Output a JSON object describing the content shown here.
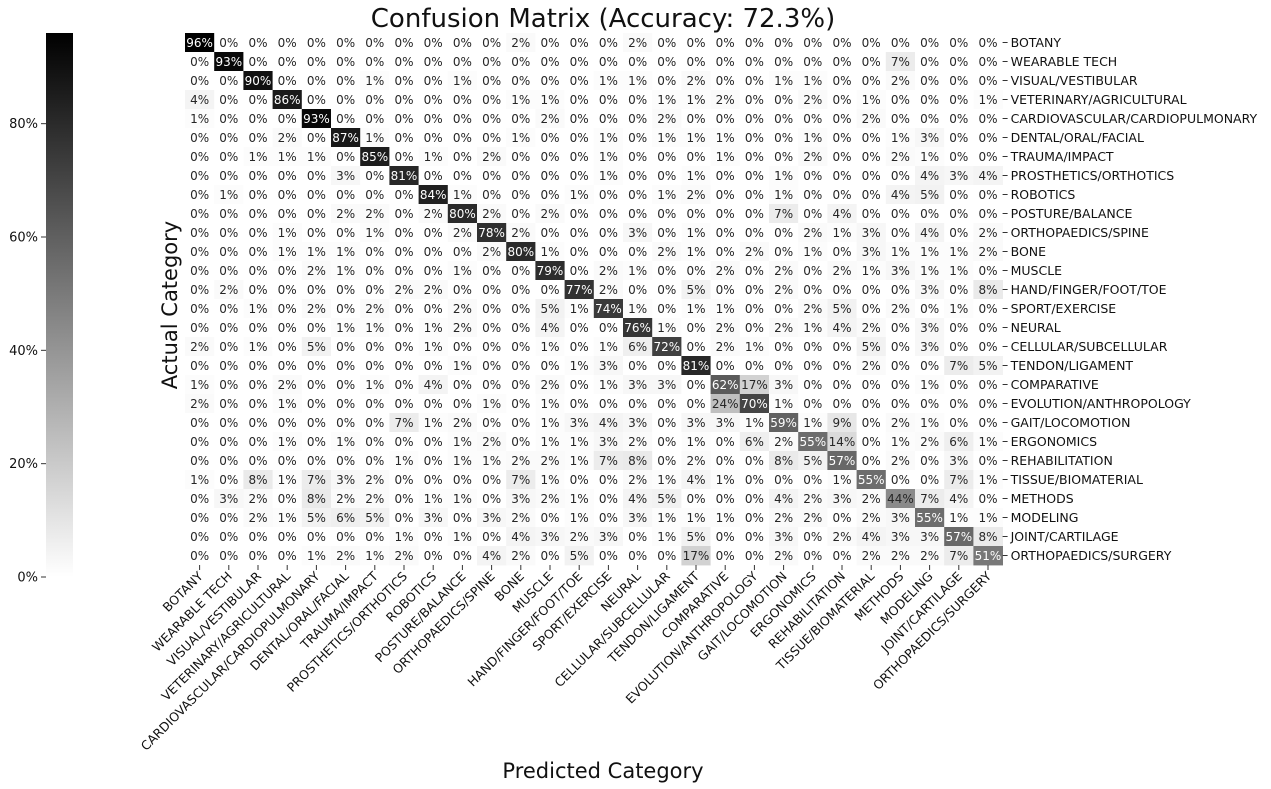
{
  "chart_data": {
    "type": "heatmap",
    "title": "Confusion Matrix (Accuracy: 72.3%)",
    "xlabel": "Predicted Category",
    "ylabel": "Actual Category",
    "value_suffix": "%",
    "colorbar": {
      "min": 0,
      "max": 96,
      "ticks": [
        0,
        20,
        40,
        60,
        80
      ],
      "tick_labels": [
        "0%",
        "20%",
        "40%",
        "60%",
        "80%"
      ],
      "colormap": "white-to-black"
    },
    "categories": [
      "BOTANY",
      "WEARABLE TECH",
      "VISUAL/VESTIBULAR",
      "VETERINARY/AGRICULTURAL",
      "CARDIOVASCULAR/CARDIOPULMONARY",
      "DENTAL/ORAL/FACIAL",
      "TRAUMA/IMPACT",
      "PROSTHETICS/ORTHOTICS",
      "ROBOTICS",
      "POSTURE/BALANCE",
      "ORTHOPAEDICS/SPINE",
      "BONE",
      "MUSCLE",
      "HAND/FINGER/FOOT/TOE",
      "SPORT/EXERCISE",
      "NEURAL",
      "CELLULAR/SUBCELLULAR",
      "TENDON/LIGAMENT",
      "COMPARATIVE",
      "EVOLUTION/ANTHROPOLOGY",
      "GAIT/LOCOMOTION",
      "ERGONOMICS",
      "REHABILITATION",
      "TISSUE/BIOMATERIAL",
      "METHODS",
      "MODELING",
      "JOINT/CARTILAGE",
      "ORTHOPAEDICS/SURGERY"
    ],
    "matrix": [
      [
        96,
        0,
        0,
        0,
        0,
        0,
        0,
        0,
        0,
        0,
        0,
        2,
        0,
        0,
        0,
        2,
        0,
        0,
        0,
        0,
        0,
        0,
        0,
        0,
        0,
        0,
        0,
        0
      ],
      [
        0,
        93,
        0,
        0,
        0,
        0,
        0,
        0,
        0,
        0,
        0,
        0,
        0,
        0,
        0,
        0,
        0,
        0,
        0,
        0,
        0,
        0,
        0,
        0,
        7,
        0,
        0,
        0
      ],
      [
        0,
        0,
        90,
        0,
        0,
        0,
        1,
        0,
        0,
        1,
        0,
        0,
        0,
        0,
        1,
        1,
        0,
        2,
        0,
        0,
        1,
        1,
        0,
        0,
        2,
        0,
        0,
        0
      ],
      [
        4,
        0,
        0,
        86,
        0,
        0,
        0,
        0,
        0,
        0,
        0,
        1,
        1,
        0,
        0,
        0,
        1,
        1,
        2,
        0,
        0,
        2,
        0,
        1,
        0,
        0,
        0,
        1
      ],
      [
        1,
        0,
        0,
        0,
        93,
        0,
        0,
        0,
        0,
        0,
        0,
        0,
        2,
        0,
        0,
        0,
        2,
        0,
        0,
        0,
        0,
        0,
        0,
        2,
        0,
        0,
        0,
        0
      ],
      [
        0,
        0,
        0,
        2,
        0,
        87,
        1,
        0,
        0,
        0,
        0,
        1,
        0,
        0,
        1,
        0,
        1,
        1,
        1,
        0,
        0,
        1,
        0,
        0,
        1,
        3,
        0,
        0
      ],
      [
        0,
        0,
        1,
        1,
        1,
        0,
        85,
        0,
        1,
        0,
        2,
        0,
        0,
        0,
        1,
        0,
        0,
        0,
        1,
        0,
        0,
        2,
        0,
        0,
        2,
        1,
        0,
        0
      ],
      [
        0,
        0,
        0,
        0,
        0,
        3,
        0,
        81,
        0,
        0,
        0,
        0,
        0,
        0,
        1,
        0,
        0,
        1,
        0,
        0,
        1,
        0,
        0,
        0,
        0,
        4,
        3,
        4
      ],
      [
        0,
        1,
        0,
        0,
        0,
        0,
        0,
        0,
        84,
        1,
        0,
        0,
        0,
        1,
        0,
        0,
        1,
        2,
        0,
        0,
        1,
        0,
        0,
        0,
        4,
        5,
        0,
        0
      ],
      [
        0,
        0,
        0,
        0,
        0,
        2,
        2,
        0,
        2,
        80,
        2,
        0,
        2,
        0,
        0,
        0,
        0,
        0,
        0,
        0,
        7,
        0,
        4,
        0,
        0,
        0,
        0,
        0
      ],
      [
        0,
        0,
        0,
        1,
        0,
        0,
        1,
        0,
        0,
        2,
        78,
        2,
        0,
        0,
        0,
        3,
        0,
        1,
        0,
        0,
        0,
        2,
        1,
        3,
        0,
        4,
        0,
        2
      ],
      [
        0,
        0,
        0,
        1,
        1,
        1,
        0,
        0,
        0,
        0,
        2,
        80,
        1,
        0,
        0,
        0,
        2,
        1,
        0,
        2,
        0,
        1,
        0,
        3,
        1,
        1,
        1,
        2
      ],
      [
        0,
        0,
        0,
        0,
        2,
        1,
        0,
        0,
        0,
        1,
        0,
        0,
        79,
        0,
        2,
        1,
        0,
        0,
        2,
        0,
        2,
        0,
        2,
        1,
        3,
        1,
        1,
        0
      ],
      [
        0,
        2,
        0,
        0,
        0,
        0,
        0,
        2,
        2,
        0,
        0,
        0,
        0,
        77,
        2,
        0,
        0,
        5,
        0,
        0,
        2,
        0,
        0,
        0,
        0,
        3,
        0,
        8
      ],
      [
        0,
        0,
        1,
        0,
        2,
        0,
        2,
        0,
        0,
        2,
        0,
        0,
        5,
        1,
        74,
        1,
        0,
        1,
        1,
        0,
        0,
        2,
        5,
        0,
        2,
        0,
        1,
        0
      ],
      [
        0,
        0,
        0,
        0,
        0,
        1,
        1,
        0,
        1,
        2,
        0,
        0,
        4,
        0,
        0,
        76,
        1,
        0,
        2,
        0,
        2,
        1,
        4,
        2,
        0,
        3,
        0,
        0
      ],
      [
        2,
        0,
        1,
        0,
        5,
        0,
        0,
        0,
        1,
        0,
        0,
        0,
        1,
        0,
        1,
        6,
        72,
        0,
        2,
        1,
        0,
        0,
        0,
        5,
        0,
        3,
        0,
        0
      ],
      [
        0,
        0,
        0,
        0,
        0,
        0,
        0,
        0,
        0,
        1,
        0,
        0,
        0,
        1,
        3,
        0,
        0,
        81,
        0,
        0,
        0,
        0,
        0,
        2,
        0,
        0,
        7,
        5
      ],
      [
        1,
        0,
        0,
        2,
        0,
        0,
        1,
        0,
        4,
        0,
        0,
        0,
        2,
        0,
        1,
        3,
        3,
        0,
        62,
        17,
        3,
        0,
        0,
        0,
        0,
        1,
        0,
        0
      ],
      [
        2,
        0,
        0,
        1,
        0,
        0,
        0,
        0,
        0,
        0,
        1,
        0,
        1,
        0,
        0,
        0,
        0,
        0,
        24,
        70,
        1,
        0,
        0,
        0,
        0,
        0,
        0,
        0
      ],
      [
        0,
        0,
        0,
        0,
        0,
        0,
        0,
        7,
        1,
        2,
        0,
        0,
        1,
        3,
        4,
        3,
        0,
        3,
        3,
        1,
        59,
        1,
        9,
        0,
        2,
        1,
        0,
        0
      ],
      [
        0,
        0,
        0,
        1,
        0,
        1,
        0,
        0,
        0,
        1,
        2,
        0,
        1,
        1,
        3,
        2,
        0,
        1,
        0,
        6,
        2,
        55,
        14,
        0,
        1,
        2,
        6,
        1
      ],
      [
        0,
        0,
        0,
        0,
        0,
        0,
        0,
        1,
        0,
        1,
        1,
        2,
        2,
        1,
        7,
        8,
        0,
        2,
        0,
        0,
        8,
        5,
        57,
        0,
        2,
        0,
        3,
        0
      ],
      [
        1,
        0,
        8,
        1,
        7,
        3,
        2,
        0,
        0,
        0,
        0,
        7,
        1,
        0,
        0,
        2,
        1,
        4,
        1,
        0,
        0,
        0,
        1,
        55,
        0,
        0,
        7,
        1
      ],
      [
        0,
        3,
        2,
        0,
        8,
        2,
        2,
        0,
        1,
        1,
        0,
        3,
        2,
        1,
        0,
        4,
        5,
        0,
        0,
        0,
        4,
        2,
        3,
        2,
        44,
        7,
        4,
        0
      ],
      [
        0,
        0,
        2,
        1,
        5,
        6,
        5,
        0,
        3,
        0,
        3,
        2,
        0,
        1,
        0,
        3,
        1,
        1,
        1,
        0,
        2,
        2,
        0,
        2,
        3,
        55,
        1,
        1
      ],
      [
        0,
        0,
        0,
        0,
        0,
        0,
        0,
        1,
        0,
        1,
        0,
        4,
        3,
        2,
        3,
        0,
        1,
        5,
        0,
        0,
        3,
        0,
        2,
        4,
        3,
        3,
        57,
        8
      ],
      [
        0,
        0,
        0,
        0,
        1,
        2,
        1,
        2,
        0,
        0,
        4,
        2,
        0,
        5,
        0,
        0,
        0,
        17,
        0,
        0,
        2,
        0,
        0,
        2,
        2,
        2,
        7,
        51
      ]
    ]
  }
}
